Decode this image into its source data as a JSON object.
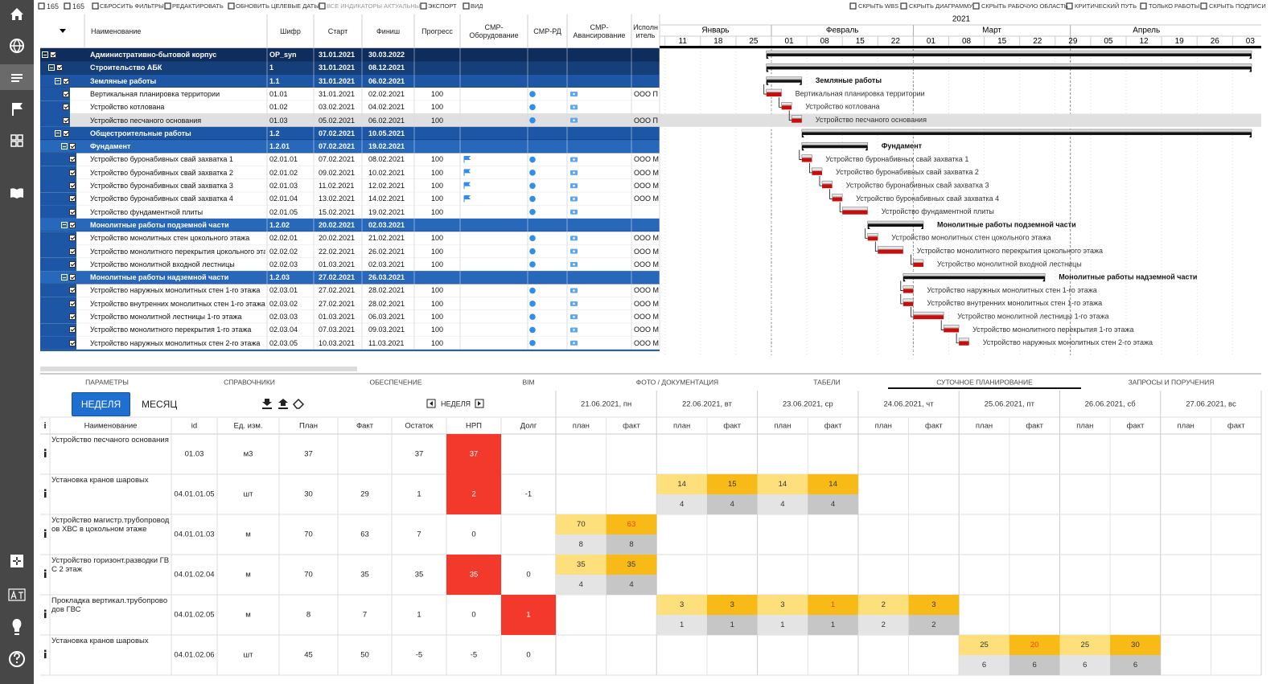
{
  "toolbar": {
    "counts": [
      165,
      165
    ],
    "left": [
      "СБРОСИТЬ ФИЛЬТРЫ",
      "РЕДАКТИРОВАТЬ",
      "ОБНОВИТЬ ЦЕЛЕВЫЕ ДАТЫ",
      "ВСЕ ИНДИКАТОРЫ АКТУАЛЬНЫ",
      "ЭКСПОРТ",
      "ВИД"
    ],
    "right": [
      "СКРЫТЬ WBS",
      "СКРЫТЬ ДИАГРАММУ",
      "СКРЫТЬ РАБОЧУЮ ОБЛАСТЬ",
      "КРИТИЧЕСКИЙ ПУТЬ",
      "ТОЛЬКО РАБОТЫ",
      "СКРЫТЬ ПОДПИСИ"
    ]
  },
  "wbs": {
    "columns": [
      "Наименование",
      "Шифр",
      "Старт",
      "Финиш",
      "Прогресс",
      "СМР-Оборудование",
      "СМР-РД",
      "СМР-Авансирование",
      "Исполнитель"
    ],
    "rows": [
      {
        "level": 0,
        "summary": true,
        "name": "Административно-бытовой корпус",
        "code": "OP_syn",
        "start": "31.01.2021",
        "finish": "30.03.2022"
      },
      {
        "level": 1,
        "summary": true,
        "name": "Строительство АБК",
        "code": "1",
        "start": "31.01.2021",
        "finish": "08.12.2021"
      },
      {
        "level": 2,
        "summary": true,
        "name": "Земляные работы",
        "code": "1.1",
        "start": "31.01.2021",
        "finish": "06.02.2021"
      },
      {
        "level": 3,
        "name": "Вертикальная планировка территории",
        "code": "01.01",
        "start": "31.01.2021",
        "finish": "02.02.2021",
        "progress": 100,
        "executor": "ООО П"
      },
      {
        "level": 3,
        "name": "Устройство котлована",
        "code": "01.02",
        "start": "03.02.2021",
        "finish": "04.02.2021",
        "progress": 100
      },
      {
        "level": 3,
        "name": "Устройство песчаного основания",
        "code": "01.03",
        "start": "05.02.2021",
        "finish": "06.02.2021",
        "progress": 100,
        "executor": "ООО П",
        "selected": true
      },
      {
        "level": 2,
        "summary": true,
        "name": "Общестроительные работы",
        "code": "1.2",
        "start": "07.02.2021",
        "finish": "10.05.2021"
      },
      {
        "level": 3,
        "summary": true,
        "name": "Фундамент",
        "code": "1.2.01",
        "start": "07.02.2021",
        "finish": "19.02.2021"
      },
      {
        "level": 4,
        "name": "Устройство буронабивных свай захватка 1",
        "code": "02.01.01",
        "start": "07.02.2021",
        "finish": "08.02.2021",
        "progress": 100,
        "executor": "ООО М",
        "flag": true
      },
      {
        "level": 4,
        "name": "Устройство буронабивных свай захватка 2",
        "code": "02.01.02",
        "start": "09.02.2021",
        "finish": "10.02.2021",
        "progress": 100,
        "executor": "ООО М",
        "flag": true
      },
      {
        "level": 4,
        "name": "Устройство буронабивных свай захватка 3",
        "code": "02.01.03",
        "start": "11.02.2021",
        "finish": "12.02.2021",
        "progress": 100,
        "executor": "ООО М",
        "flag": true
      },
      {
        "level": 4,
        "name": "Устройство буронабивных свай захватка 4",
        "code": "02.01.04",
        "start": "13.02.2021",
        "finish": "14.02.2021",
        "progress": 100,
        "executor": "ООО М",
        "flag": true
      },
      {
        "level": 4,
        "name": "Устройство фундаментной плиты",
        "code": "02.01.05",
        "start": "15.02.2021",
        "finish": "19.02.2021",
        "progress": 100
      },
      {
        "level": 3,
        "summary": true,
        "name": "Монолитные работы подземной части",
        "code": "1.2.02",
        "start": "20.02.2021",
        "finish": "02.03.2021"
      },
      {
        "level": 4,
        "name": "Устройство монолитных стен цокольного этажа",
        "code": "02.02.01",
        "start": "20.02.2021",
        "finish": "21.02.2021",
        "progress": 100,
        "executor": "ООО М"
      },
      {
        "level": 4,
        "name": "Устройство монолитного перекрытия цокольного этажа",
        "code": "02.02.02",
        "start": "22.02.2021",
        "finish": "26.02.2021",
        "progress": 100,
        "executor": "ООО М"
      },
      {
        "level": 4,
        "name": "Устройство монолитной входной лестницы",
        "code": "02.02.03",
        "start": "01.03.2021",
        "finish": "02.03.2021",
        "progress": 100,
        "executor": "ООО М"
      },
      {
        "level": 3,
        "summary": true,
        "name": "Монолитные работы надземной части",
        "code": "1.2.03",
        "start": "27.02.2021",
        "finish": "26.03.2021"
      },
      {
        "level": 4,
        "name": "Устройство наружных монолитных стен 1-го этажа",
        "code": "02.03.01",
        "start": "27.02.2021",
        "finish": "28.02.2021",
        "progress": 100,
        "executor": "ООО М"
      },
      {
        "level": 4,
        "name": "Устройство внутренних монолитных стен 1-го этажа",
        "code": "02.03.02",
        "start": "27.02.2021",
        "finish": "28.02.2021",
        "progress": 100,
        "executor": "ООО М"
      },
      {
        "level": 4,
        "name": "Устройство монолитной лестницы 1-го этажа",
        "code": "02.03.03",
        "start": "01.03.2021",
        "finish": "06.03.2021",
        "progress": 100,
        "executor": "ООО М"
      },
      {
        "level": 4,
        "name": "Устройство монолитного перекрытия 1-го этажа",
        "code": "02.03.04",
        "start": "07.03.2021",
        "finish": "09.03.2021",
        "progress": 100,
        "executor": "ООО М"
      },
      {
        "level": 4,
        "name": "Устройство наружных монолитных стен 2-го этажа",
        "code": "02.03.05",
        "start": "10.03.2021",
        "finish": "11.03.2021",
        "progress": 100,
        "executor": "ООО М"
      }
    ]
  },
  "gantt": {
    "year": "2021",
    "months": [
      "Январь",
      "Февраль",
      "Март",
      "Апрель"
    ],
    "weeks": [
      "11",
      "18",
      "25",
      "01",
      "08",
      "15",
      "22",
      "01",
      "08",
      "15",
      "22",
      "29",
      "05",
      "12",
      "19",
      "26",
      "03"
    ]
  },
  "tabs": [
    "ПАРАМЕТРЫ",
    "СПРАВОЧНИКИ",
    "ОБЕСПЕЧЕНИЕ",
    "BIM",
    "ФОТО / ДОКУМЕНТАЦИЯ",
    "ТАБЕЛИ",
    "СУТОЧНОЕ ПЛАНИРОВАНИЕ",
    "ЗАПРОСЫ И ПОРУЧЕНИЯ"
  ],
  "active_tab": 6,
  "planning": {
    "modes": [
      "НЕДЕЛЯ",
      "МЕСЯЦ"
    ],
    "nav": "НЕДЕЛЯ",
    "columns": [
      "i",
      "Наименование",
      "id",
      "Ед. изм.",
      "План",
      "Факт",
      "Остаток",
      "НРП",
      "Долг"
    ],
    "days": [
      "21.06.2021, пн",
      "22.06.2021, вт",
      "23.06.2021, ср",
      "24.06.2021, чт",
      "25.06.2021, пт",
      "26.06.2021, сб",
      "27.06.2021, вс"
    ],
    "sub": [
      "план",
      "факт"
    ],
    "rows": [
      {
        "name": "Устройство песчаного основания",
        "id": "01.03",
        "unit": "м3",
        "plan": 37,
        "rest": 37,
        "nrp": 37,
        "days": [
          null,
          null,
          null,
          null,
          null,
          null,
          null
        ]
      },
      {
        "name": "Установка кранов шаровых",
        "id": "04.01.01.05",
        "unit": "шт",
        "plan": 30,
        "fact": 29,
        "rest": 1,
        "nrp": 2,
        "debt": -1,
        "days": [
          null,
          {
            "plan": [
              14,
              4
            ],
            "fact": [
              15,
              4
            ]
          },
          {
            "plan": [
              14,
              4
            ],
            "fact": [
              14,
              4
            ]
          },
          null,
          null,
          null,
          null
        ]
      },
      {
        "name": "Устройство магистр.трубопроводов ХВС в цокольном этаже",
        "id": "04.01.01.03",
        "unit": "м",
        "plan": 70,
        "fact": 63,
        "rest": 7,
        "nrp": 0,
        "days": [
          {
            "plan": [
              70,
              8
            ],
            "fact": [
              63,
              8
            ]
          },
          null,
          null,
          null,
          null,
          null,
          null
        ]
      },
      {
        "name": "Устройство горизонт.разводки ГВС 2 этаж",
        "id": "04.01.02.04",
        "unit": "м",
        "plan": 70,
        "fact": 35,
        "rest": 35,
        "nrp": 35,
        "debt": 0,
        "days": [
          {
            "plan": [
              35,
              4
            ],
            "fact": [
              35,
              4
            ]
          },
          null,
          null,
          null,
          null,
          null,
          null
        ]
      },
      {
        "name": "Прокладка вертикал.трубопроводов ГВС",
        "id": "04.01.02.05",
        "unit": "м",
        "plan": 8,
        "fact": 7,
        "rest": 1,
        "nrp": 0,
        "debt": 1,
        "days": [
          null,
          {
            "plan": [
              3,
              1
            ],
            "fact": [
              3,
              1
            ]
          },
          {
            "plan": [
              3,
              1
            ],
            "fact": [
              1,
              1
            ]
          },
          {
            "plan": [
              2,
              2
            ],
            "fact": [
              3,
              2
            ]
          },
          null,
          null,
          null
        ]
      },
      {
        "name": "Установка кранов шаровых",
        "id": "04.01.02.06",
        "unit": "шт",
        "plan": 45,
        "fact": 50,
        "rest": -5,
        "nrp": -5,
        "debt": 0,
        "days": [
          null,
          null,
          null,
          null,
          {
            "plan": [
              25,
              6
            ],
            "fact": [
              20,
              6
            ]
          },
          {
            "plan": [
              25,
              6
            ],
            "fact": [
              30,
              6
            ]
          },
          null
        ]
      }
    ]
  }
}
